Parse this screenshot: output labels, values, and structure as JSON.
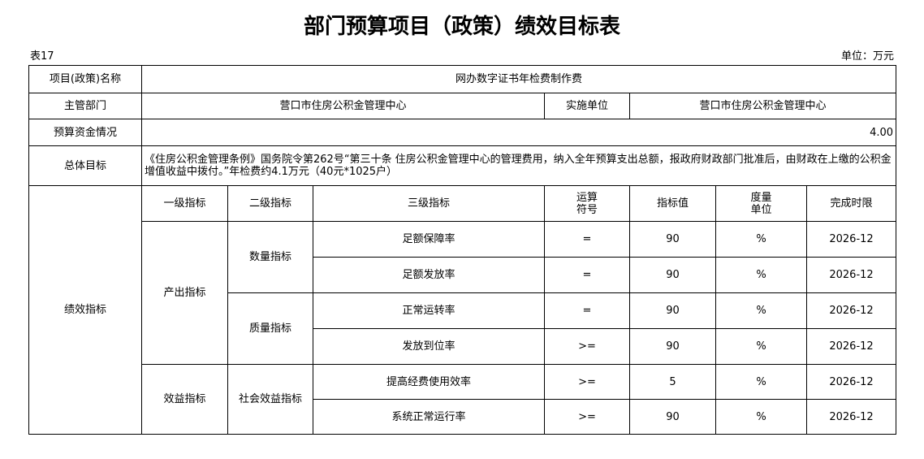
{
  "title": "部门预算项目（政策）绩效目标表",
  "table_no": "表17",
  "unit": "单位：万元",
  "project_name_label": "项目(政策)名称",
  "project_name": "网办数字证书年检费制作费",
  "dept_label": "主管部门",
  "dept": "营口市住房公积金管理中心",
  "impl_label": "实施单位",
  "impl": "营口市住房公积金管理中心",
  "budget_label": "预算资金情况",
  "budget": "4.00",
  "goal_label": "总体目标",
  "goal": "《住房公积金管理条例》国务院令第262号“第三十条 住房公积金管理中心的管理费用，纳入全年预算支出总额，报政府财政部门批准后，由财政在上缴的公积金增值收益中拨付。”年检费约4.1万元（40元*1025户）",
  "perf_label": "绩效指标",
  "headers": [
    "一级指标",
    "二级指标",
    "三级指标",
    "运算\n符号",
    "指标值",
    "度量\n单位",
    "完成时限"
  ],
  "level1": [
    "产出指标",
    "效益指标"
  ],
  "level2": [
    "数量指标",
    "质量指标",
    "社会效益指标"
  ],
  "rows": [
    {
      "name": "足额保障率",
      "op": "=",
      "value": "90",
      "unit": "%",
      "deadline": "2026-12"
    },
    {
      "name": "足额发放率",
      "op": "=",
      "value": "90",
      "unit": "%",
      "deadline": "2026-12"
    },
    {
      "name": "正常运转率",
      "op": "=",
      "value": "90",
      "unit": "%",
      "deadline": "2026-12"
    },
    {
      "name": "发放到位率",
      "op": ">=",
      "value": "90",
      "unit": "%",
      "deadline": "2026-12"
    },
    {
      "name": "提高经费使用效率",
      "op": ">=",
      "value": "5",
      "unit": "%",
      "deadline": "2026-12"
    },
    {
      "name": "系统正常运行率",
      "op": ">=",
      "value": "90",
      "unit": "%",
      "deadline": "2026-12"
    }
  ]
}
